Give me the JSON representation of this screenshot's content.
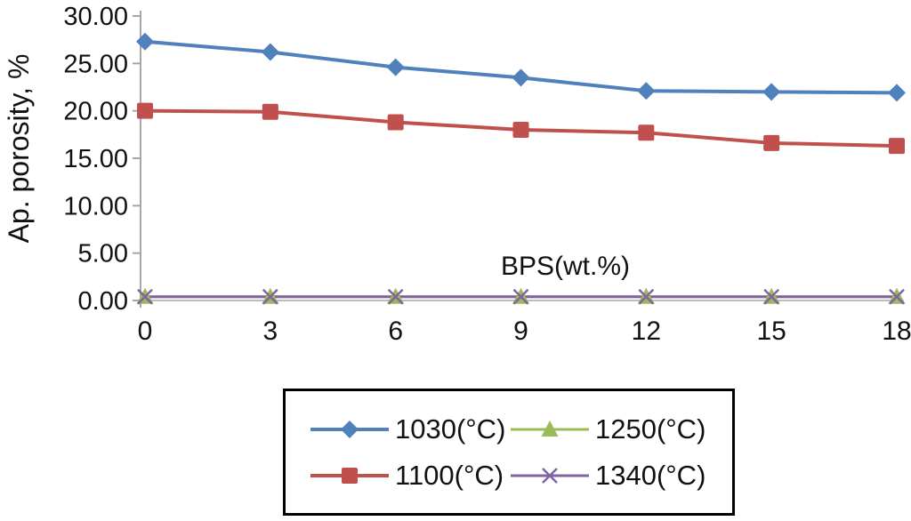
{
  "chart_data": {
    "type": "line",
    "x": [
      0,
      3,
      6,
      9,
      12,
      15,
      18
    ],
    "xtick_labels": [
      "0",
      "3",
      "6",
      "9",
      "12",
      "15",
      "18"
    ],
    "series": [
      {
        "name": "1030(°C)",
        "color": "#4f81bd",
        "marker": "diamond",
        "line_width": 4,
        "values": [
          27.3,
          26.2,
          24.6,
          23.5,
          22.1,
          22.0,
          21.9
        ]
      },
      {
        "name": "1100(°C)",
        "color": "#c0504d",
        "marker": "square",
        "line_width": 4,
        "values": [
          20.0,
          19.9,
          18.8,
          18.0,
          17.7,
          16.6,
          16.3
        ]
      },
      {
        "name": "1250(°C)",
        "color": "#9bbb59",
        "marker": "triangle",
        "line_width": 3,
        "values": [
          0.4,
          0.4,
          0.4,
          0.4,
          0.4,
          0.4,
          0.4
        ]
      },
      {
        "name": "1340(°C)",
        "color": "#8064a2",
        "marker": "x",
        "line_width": 3,
        "values": [
          0.4,
          0.4,
          0.4,
          0.4,
          0.4,
          0.4,
          0.4
        ]
      }
    ],
    "ylabel": "Ap. porosity, %",
    "xlabel": "BPS(wt.%)",
    "ylim": [
      0,
      30
    ],
    "ytick_step": 5,
    "ytick_labels": [
      "0.00",
      "5.00",
      "10.00",
      "15.00",
      "20.00",
      "25.00",
      "30.00"
    ],
    "grid": false,
    "legend_position": "bottom-box",
    "legend_order": [
      0,
      2,
      1,
      3
    ],
    "axis_color": "#a6a6a6",
    "text_color": "#111111"
  }
}
